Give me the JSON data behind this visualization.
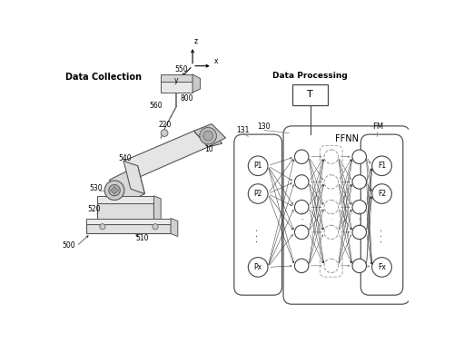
{
  "bg_color": "#ffffff",
  "data_collection_label": "Data Collection",
  "data_processing_label": "Data Processing",
  "ffnn_label": "FFNN",
  "fm_label": "FM",
  "T_label": "T",
  "input_labels": [
    "P1",
    "P2",
    "Px"
  ],
  "output_labels": [
    "F1",
    "F2",
    "Fx"
  ],
  "ref_131": "131",
  "ref_130": "130",
  "ref_550": "550",
  "ref_560": "560",
  "ref_800": "800",
  "ref_220": "220",
  "ref_10": "10",
  "ref_540": "540",
  "ref_530": "530",
  "ref_520": "520",
  "ref_510": "510",
  "ref_500": "500",
  "axis_z": "z",
  "axis_y": "y",
  "axis_x": "x"
}
